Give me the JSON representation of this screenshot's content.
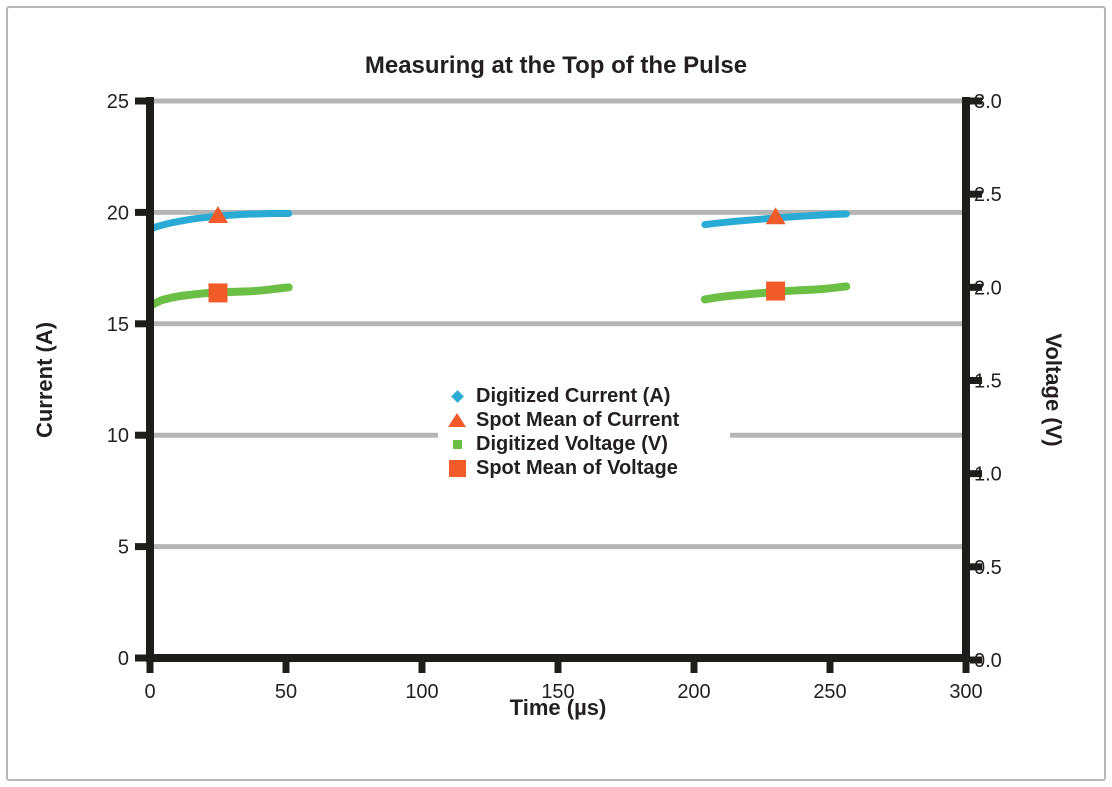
{
  "chart_data": {
    "type": "scatter",
    "title": "Measuring at the Top of the Pulse",
    "xlabel": "Time (µs)",
    "ylabel_left": "Current (A)",
    "ylabel_right": "Voltage (V)",
    "xlim": [
      0,
      300
    ],
    "ylim_left": [
      0,
      25
    ],
    "ylim_right": [
      0,
      3
    ],
    "x_ticks": [
      "0",
      "50",
      "100",
      "150",
      "200",
      "250",
      "300"
    ],
    "y_left_ticks": [
      "0",
      "5",
      "10",
      "15",
      "20",
      "25"
    ],
    "y_right_ticks": [
      "0.0",
      "0.5",
      "1.0",
      "1.5",
      "2.0",
      "2.5",
      "3.0"
    ],
    "grid": "horizontal",
    "gridlines": {
      "axis": "left",
      "values": [
        5,
        10,
        15,
        20,
        25
      ],
      "color": "#b5b5b5"
    },
    "colors": {
      "current": "#2aabd6",
      "voltage": "#6cbf45",
      "spot_mean": "#f15b2a",
      "axis": "#1d1d1b",
      "text": "#231f20"
    },
    "legend_position": "center",
    "legend": [
      {
        "label": "Digitized Current (A)",
        "marker": "diamond",
        "color": "#2aabd6"
      },
      {
        "label": "Spot Mean of Current",
        "marker": "triangle",
        "color": "#f15b2a"
      },
      {
        "label": "Digitized Voltage (V)",
        "marker": "square-small",
        "color": "#6cbf45"
      },
      {
        "label": "Spot Mean of Voltage",
        "marker": "square",
        "color": "#f15b2a"
      }
    ],
    "series": [
      {
        "name": "Digitized Current (A)",
        "axis": "left",
        "style": "trace",
        "color": "#2aabd6",
        "width": 7,
        "pulses": [
          [
            [
              0,
              19.25
            ],
            [
              3,
              19.38
            ],
            [
              6,
              19.48
            ],
            [
              9,
              19.56
            ],
            [
              12,
              19.63
            ],
            [
              15,
              19.69
            ],
            [
              18,
              19.74
            ],
            [
              21,
              19.78
            ],
            [
              24,
              19.82
            ],
            [
              27,
              19.85
            ],
            [
              30,
              19.88
            ],
            [
              33,
              19.9
            ],
            [
              36,
              19.92
            ],
            [
              39,
              19.93
            ],
            [
              42,
              19.94
            ],
            [
              45,
              19.95
            ],
            [
              48,
              19.95
            ],
            [
              51,
              19.95
            ]
          ],
          [
            [
              204,
              19.45
            ],
            [
              208,
              19.51
            ],
            [
              212,
              19.56
            ],
            [
              216,
              19.61
            ],
            [
              220,
              19.65
            ],
            [
              224,
              19.69
            ],
            [
              228,
              19.73
            ],
            [
              232,
              19.77
            ],
            [
              236,
              19.8
            ],
            [
              240,
              19.83
            ],
            [
              244,
              19.86
            ],
            [
              248,
              19.89
            ],
            [
              252,
              19.91
            ],
            [
              256,
              19.93
            ]
          ]
        ]
      },
      {
        "name": "Spot Mean of Current",
        "axis": "left",
        "style": "marker",
        "marker": "triangle",
        "color": "#f15b2a",
        "points": [
          [
            25,
            19.84
          ],
          [
            230,
            19.78
          ]
        ]
      },
      {
        "name": "Digitized Voltage (V)",
        "axis": "right",
        "style": "trace",
        "color": "#6cbf45",
        "width": 8,
        "pulses": [
          [
            [
              0,
              1.9
            ],
            [
              4,
              1.93
            ],
            [
              8,
              1.945
            ],
            [
              12,
              1.955
            ],
            [
              16,
              1.962
            ],
            [
              20,
              1.968
            ],
            [
              24,
              1.972
            ],
            [
              28,
              1.974
            ],
            [
              32,
              1.976
            ],
            [
              36,
              1.978
            ],
            [
              40,
              1.982
            ],
            [
              44,
              1.988
            ],
            [
              48,
              1.995
            ],
            [
              51,
              2.0
            ]
          ],
          [
            [
              204,
              1.935
            ],
            [
              208,
              1.945
            ],
            [
              212,
              1.952
            ],
            [
              216,
              1.958
            ],
            [
              220,
              1.963
            ],
            [
              224,
              1.968
            ],
            [
              228,
              1.973
            ],
            [
              232,
              1.978
            ],
            [
              236,
              1.982
            ],
            [
              240,
              1.985
            ],
            [
              244,
              1.988
            ],
            [
              248,
              1.992
            ],
            [
              252,
              1.998
            ],
            [
              256,
              2.005
            ]
          ]
        ]
      },
      {
        "name": "Spot Mean of Voltage",
        "axis": "right",
        "style": "marker",
        "marker": "square",
        "color": "#f15b2a",
        "points": [
          [
            25,
            1.97
          ],
          [
            230,
            1.98
          ]
        ]
      }
    ]
  }
}
